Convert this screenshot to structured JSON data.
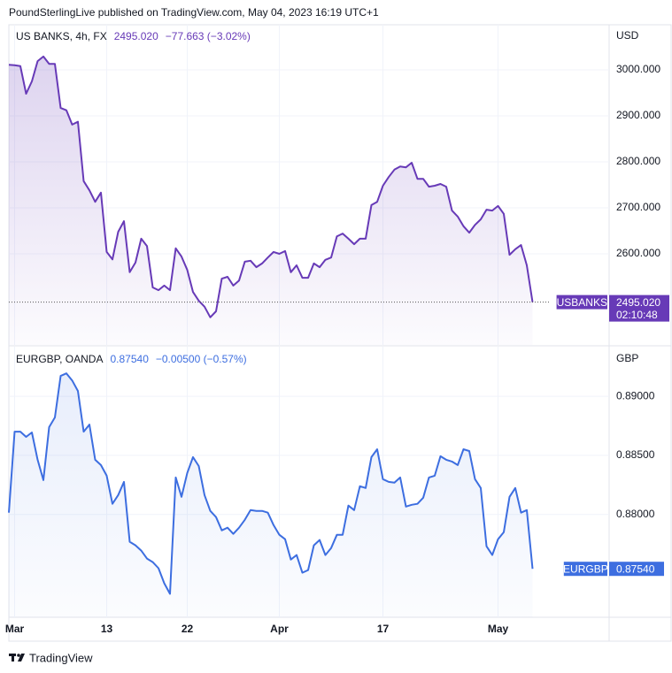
{
  "header": "PoundSterlingLive published on TradingView.com, May 04, 2023 16:19 UTC+1",
  "footer": "TradingView",
  "chart_data": [
    {
      "type": "line",
      "title": "US BANKS, 4h, FX",
      "last_label": "2495.020",
      "change_label": "−77.663 (−3.02%)",
      "unit": "USD",
      "series": [
        {
          "name": "USBANKS",
          "color": "#673ab7",
          "values": [
            3011,
            3010,
            3008,
            2948,
            2975,
            3019,
            3029,
            3013,
            3013,
            2917,
            2912,
            2881,
            2887,
            2758,
            2738,
            2713,
            2733,
            2604,
            2588,
            2648,
            2671,
            2560,
            2581,
            2633,
            2617,
            2527,
            2521,
            2531,
            2521,
            2612,
            2594,
            2565,
            2517,
            2498,
            2485,
            2462,
            2475,
            2546,
            2550,
            2531,
            2542,
            2583,
            2585,
            2571,
            2579,
            2592,
            2604,
            2600,
            2606,
            2560,
            2575,
            2548,
            2548,
            2579,
            2571,
            2587,
            2592,
            2638,
            2644,
            2633,
            2621,
            2633,
            2633,
            2706,
            2713,
            2748,
            2767,
            2783,
            2790,
            2788,
            2798,
            2763,
            2763,
            2746,
            2748,
            2752,
            2746,
            2694,
            2681,
            2660,
            2646,
            2663,
            2675,
            2696,
            2694,
            2704,
            2687,
            2598,
            2610,
            2619,
            2575,
            2495.02
          ]
        }
      ],
      "ylim": [
        2402,
        3098
      ],
      "yticks": [
        {
          "value": 2600,
          "label": "2600.000"
        },
        {
          "value": 2700,
          "label": "2700.000"
        },
        {
          "value": 2800,
          "label": "2800.000"
        },
        {
          "value": 2900,
          "label": "2900.000"
        },
        {
          "value": 3000,
          "label": "3000.000"
        }
      ],
      "countdown": "02:10:48",
      "grid": true
    },
    {
      "type": "line",
      "title": "EURGBP, OANDA",
      "last_label": "0.87540",
      "change_label": "−0.00500 (−0.57%)",
      "unit": "GBP",
      "categories": [
        null,
        "Mar",
        null,
        null,
        null,
        null,
        null,
        null,
        null,
        null,
        null,
        null,
        null,
        null,
        null,
        null,
        null,
        "13",
        null,
        null,
        null,
        null,
        null,
        null,
        null,
        null,
        null,
        null,
        null,
        null,
        null,
        "22",
        null,
        null,
        null,
        null,
        null,
        null,
        null,
        null,
        null,
        null,
        null,
        null,
        null,
        null,
        null,
        "Apr",
        null,
        null,
        null,
        null,
        null,
        null,
        null,
        null,
        null,
        null,
        null,
        null,
        null,
        null,
        null,
        null,
        null,
        "17",
        null,
        null,
        null,
        null,
        null,
        null,
        null,
        null,
        null,
        null,
        null,
        null,
        null,
        null,
        null,
        null,
        null,
        null,
        null,
        "May",
        null,
        null,
        null,
        null,
        null,
        null
      ],
      "series": [
        {
          "name": "EURGBP",
          "color": "#3d6ee0",
          "values": [
            0.88015,
            0.88701,
            0.88701,
            0.88657,
            0.88694,
            0.88463,
            0.88291,
            0.88739,
            0.88821,
            0.89172,
            0.89194,
            0.89134,
            0.89045,
            0.88701,
            0.88761,
            0.88463,
            0.88418,
            0.88328,
            0.8809,
            0.88164,
            0.88276,
            0.87769,
            0.87739,
            0.87694,
            0.87627,
            0.87597,
            0.87545,
            0.87418,
            0.87328,
            0.88313,
            0.88149,
            0.88351,
            0.88485,
            0.8841,
            0.88164,
            0.8803,
            0.87978,
            0.87866,
            0.87888,
            0.87836,
            0.87888,
            0.87955,
            0.88037,
            0.8803,
            0.8803,
            0.88015,
            0.8791,
            0.87828,
            0.87791,
            0.87619,
            0.87657,
            0.87507,
            0.8753,
            0.87739,
            0.87784,
            0.87657,
            0.87716,
            0.87828,
            0.87828,
            0.88075,
            0.88037,
            0.88239,
            0.88224,
            0.88485,
            0.88552,
            0.88299,
            0.88276,
            0.88269,
            0.88313,
            0.88067,
            0.88082,
            0.8809,
            0.88142,
            0.88313,
            0.88328,
            0.88493,
            0.88463,
            0.88448,
            0.88418,
            0.88552,
            0.88537,
            0.88299,
            0.88224,
            0.87731,
            0.87657,
            0.87791,
            0.87851,
            0.88149,
            0.88224,
            0.88015,
            0.88037,
            0.8754
          ]
        }
      ],
      "ylim": [
        0.8713,
        0.8942
      ],
      "yticks": [
        {
          "value": 0.88,
          "label": "0.88000"
        },
        {
          "value": 0.885,
          "label": "0.88500"
        },
        {
          "value": 0.89,
          "label": "0.89000"
        }
      ],
      "grid": true
    }
  ]
}
